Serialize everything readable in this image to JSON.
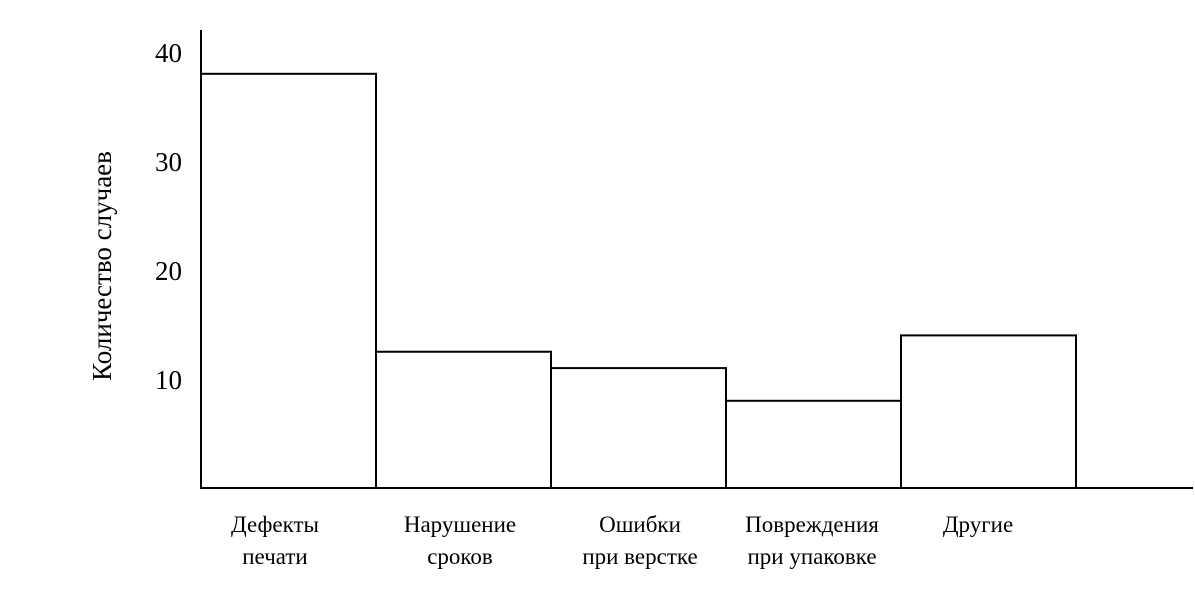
{
  "chart_data": {
    "type": "bar",
    "categories": [
      [
        "Дефекты",
        "печати"
      ],
      [
        "Нарушение",
        "сроков"
      ],
      [
        "Ошибки",
        "при верстке"
      ],
      [
        "Повреждения",
        "при упаковке"
      ],
      [
        "Другие"
      ]
    ],
    "values": [
      38,
      12.5,
      11,
      8,
      14
    ],
    "ylabel": "Количество случаев",
    "yticks": [
      10,
      20,
      30,
      40
    ],
    "ylim": [
      0,
      45
    ],
    "grid": false,
    "colors": {
      "bar_fill": "#ffffff",
      "bar_stroke": "#000000"
    }
  }
}
